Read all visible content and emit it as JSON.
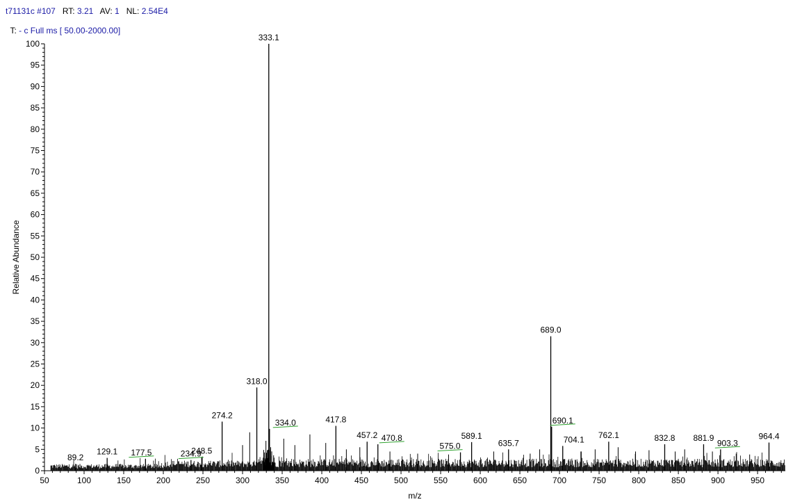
{
  "header": {
    "line1": [
      {
        "text": "t71131c #107",
        "key": false
      },
      {
        "text": "   RT: ",
        "key": true
      },
      {
        "text": "3.21",
        "key": false
      },
      {
        "text": "   AV: ",
        "key": true
      },
      {
        "text": "1",
        "key": false
      },
      {
        "text": "   NL: ",
        "key": true
      },
      {
        "text": "2.54E4",
        "key": false
      }
    ],
    "line2_key": "T: ",
    "line2_val": "- c Full ms [ 50.00-2000.00]"
  },
  "chart_data": {
    "type": "bar",
    "xlabel": "m/z",
    "ylabel": "Relative Abundance",
    "xlim": [
      50,
      985
    ],
    "ylim": [
      0,
      100
    ],
    "x_ticks": [
      50,
      100,
      150,
      200,
      250,
      300,
      350,
      400,
      450,
      500,
      550,
      600,
      650,
      700,
      750,
      800,
      850,
      900,
      950
    ],
    "y_ticks": [
      0,
      5,
      10,
      15,
      20,
      25,
      30,
      35,
      40,
      45,
      50,
      55,
      60,
      65,
      70,
      75,
      80,
      85,
      90,
      95,
      100
    ],
    "grid": false,
    "labeled_peaks": [
      {
        "mz": 89.2,
        "value": 1.6,
        "label": "89.2"
      },
      {
        "mz": 129.1,
        "value": 3.0,
        "label": "129.1"
      },
      {
        "mz": 177.5,
        "value": 2.8,
        "label": "177.5"
      },
      {
        "mz": 234.9,
        "value": 2.5,
        "label": "234.9"
      },
      {
        "mz": 248.5,
        "value": 3.2,
        "label": "248.5"
      },
      {
        "mz": 274.2,
        "value": 11.5,
        "label": "274.2"
      },
      {
        "mz": 318.0,
        "value": 19.5,
        "label": "318.0"
      },
      {
        "mz": 333.1,
        "value": 100.0,
        "label": "333.1"
      },
      {
        "mz": 334.0,
        "value": 9.8,
        "label": "334.0"
      },
      {
        "mz": 417.8,
        "value": 10.5,
        "label": "417.8"
      },
      {
        "mz": 457.2,
        "value": 6.8,
        "label": "457.2"
      },
      {
        "mz": 470.8,
        "value": 6.2,
        "label": "470.8"
      },
      {
        "mz": 575.0,
        "value": 4.3,
        "label": "575.0"
      },
      {
        "mz": 589.1,
        "value": 6.7,
        "label": "589.1"
      },
      {
        "mz": 635.7,
        "value": 5.0,
        "label": "635.7"
      },
      {
        "mz": 689.0,
        "value": 31.5,
        "label": "689.0"
      },
      {
        "mz": 690.1,
        "value": 10.3,
        "label": "690.1"
      },
      {
        "mz": 704.1,
        "value": 5.8,
        "label": "704.1"
      },
      {
        "mz": 762.1,
        "value": 6.8,
        "label": "762.1"
      },
      {
        "mz": 832.8,
        "value": 6.2,
        "label": "832.8"
      },
      {
        "mz": 881.9,
        "value": 6.2,
        "label": "881.9"
      },
      {
        "mz": 903.3,
        "value": 5.0,
        "label": "903.3"
      },
      {
        "mz": 964.4,
        "value": 6.6,
        "label": "964.4"
      }
    ],
    "unlabeled_peaks": [
      {
        "mz": 300.0,
        "value": 6.0
      },
      {
        "mz": 309.0,
        "value": 9.0
      },
      {
        "mz": 329.5,
        "value": 7.0
      },
      {
        "mz": 332.0,
        "value": 4.5
      },
      {
        "mz": 335.5,
        "value": 5.5
      },
      {
        "mz": 352.0,
        "value": 7.5
      },
      {
        "mz": 366.0,
        "value": 6.0
      },
      {
        "mz": 385.0,
        "value": 8.5
      },
      {
        "mz": 405.0,
        "value": 6.5
      },
      {
        "mz": 431.0,
        "value": 5.0
      },
      {
        "mz": 448.0,
        "value": 5.5
      },
      {
        "mz": 486.0,
        "value": 4.5
      },
      {
        "mz": 521.0,
        "value": 4.0
      },
      {
        "mz": 560.0,
        "value": 3.8
      },
      {
        "mz": 617.0,
        "value": 4.5
      },
      {
        "mz": 663.0,
        "value": 4.0
      },
      {
        "mz": 675.0,
        "value": 5.0
      },
      {
        "mz": 727.0,
        "value": 4.5
      },
      {
        "mz": 745.0,
        "value": 5.0
      },
      {
        "mz": 774.0,
        "value": 5.5
      },
      {
        "mz": 796.0,
        "value": 4.5
      },
      {
        "mz": 813.0,
        "value": 4.8
      },
      {
        "mz": 846.0,
        "value": 4.5
      },
      {
        "mz": 858.0,
        "value": 5.0
      },
      {
        "mz": 893.0,
        "value": 4.5
      },
      {
        "mz": 923.0,
        "value": 4.0
      },
      {
        "mz": 940.0,
        "value": 3.8
      }
    ],
    "colors": {
      "peak": "#000000",
      "axis": "#000000",
      "header_value": "#1a1aa6",
      "label_marker": "#2ca02c"
    }
  }
}
